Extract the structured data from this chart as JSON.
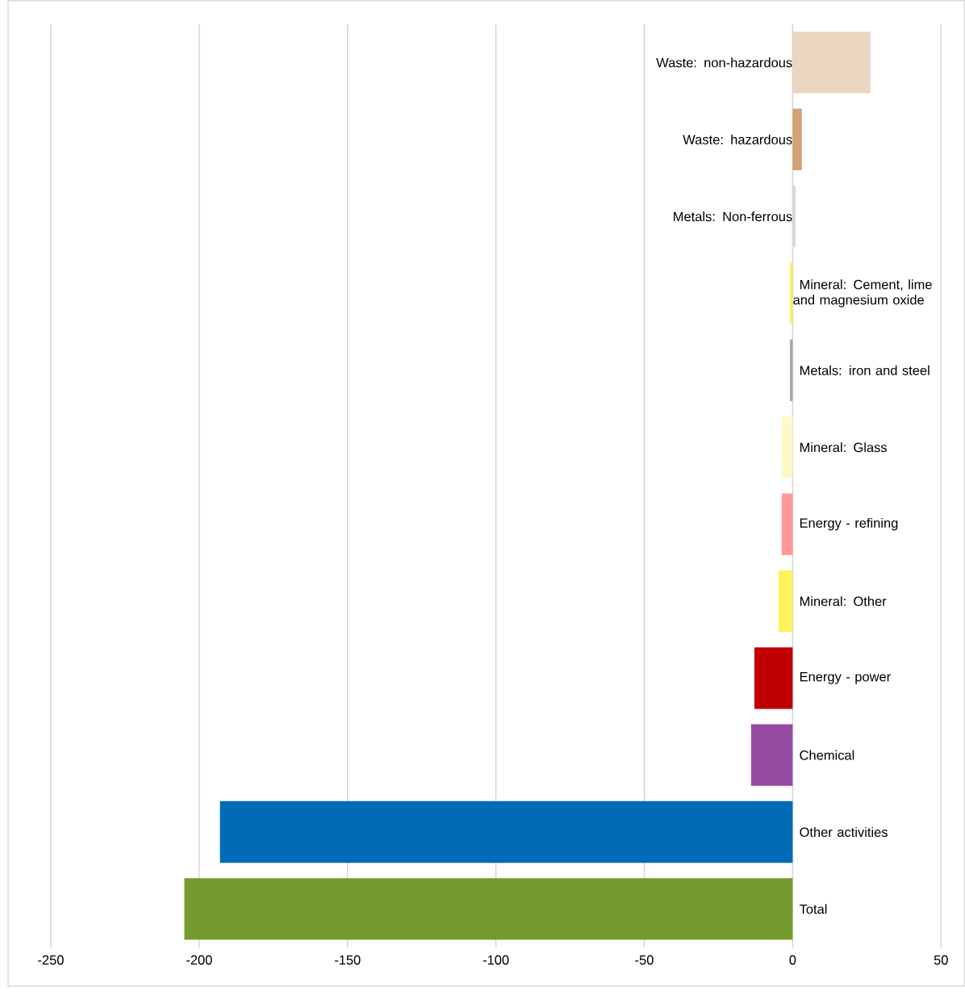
{
  "chart_data": {
    "type": "bar",
    "orientation": "horizontal",
    "categories": [
      "Waste: non-hazardous",
      "Waste: hazardous",
      "Metals: Non-ferrous",
      "Mineral: Cement, lime and magnesium oxide",
      "Metals: iron and steel",
      "Mineral: Glass",
      "Energy - refining",
      "Mineral: Other",
      "Energy - power",
      "Chemical",
      "Other activities",
      "Total"
    ],
    "values": [
      26.2,
      3.1,
      1.0,
      -1.0,
      -0.9,
      -3.7,
      -3.7,
      -4.8,
      -12.9,
      -14.0,
      -193,
      -205
    ],
    "colors": [
      "#ead5c0",
      "#d0a275",
      "#d9d9d9",
      "#fff066",
      "#a6a6a6",
      "#fff9c8",
      "#ff9999",
      "#fff25c",
      "#c00000",
      "#934b9f",
      "#006bb6",
      "#749b2e"
    ],
    "xlim": [
      -250,
      50
    ],
    "xticks": [
      -250,
      -200,
      -150,
      -100,
      -50,
      0,
      50
    ],
    "grid": "x"
  }
}
